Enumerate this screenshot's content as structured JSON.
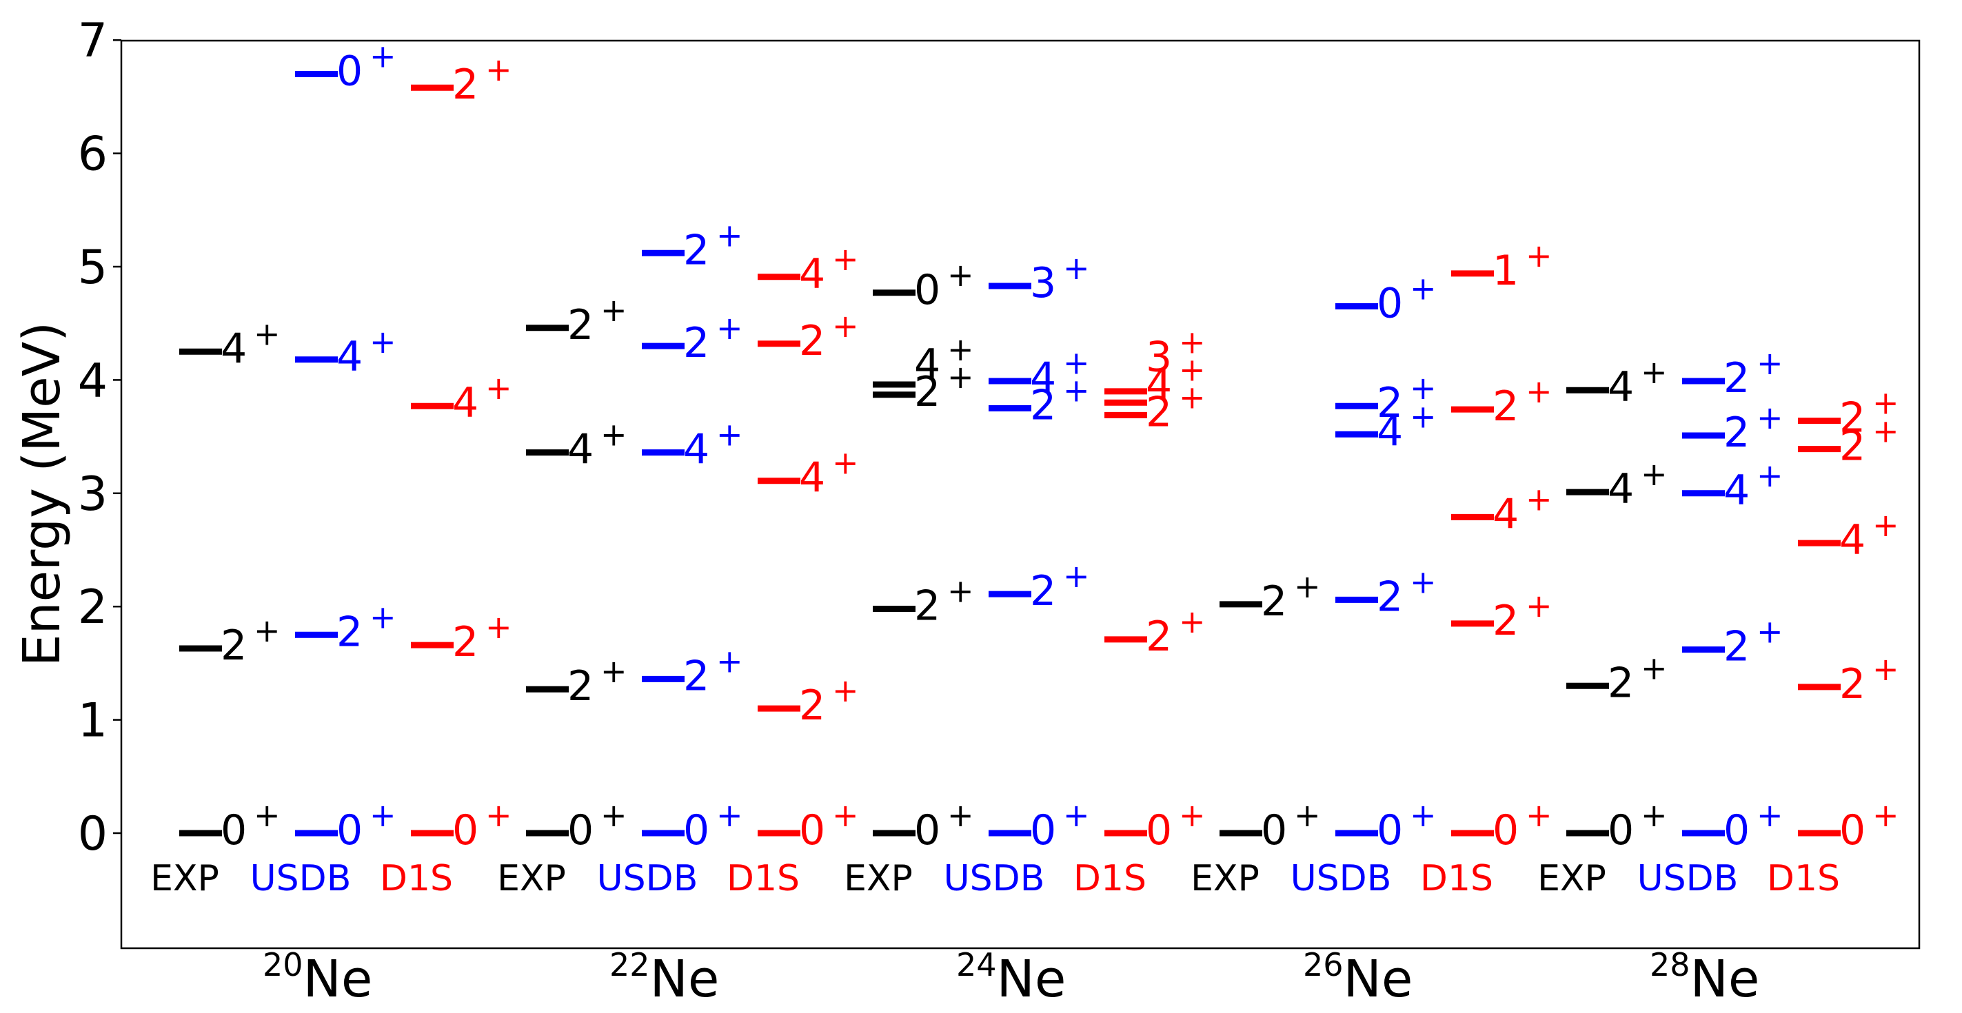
{
  "chart_data": {
    "type": "level-scheme",
    "title": "",
    "ylabel": "Energy (MeV)",
    "xlabel": "",
    "ylim": [
      -1,
      7
    ],
    "yticks": [
      "0",
      "1",
      "2",
      "3",
      "4",
      "5",
      "6",
      "7"
    ],
    "colors": {
      "EXP": "#000000",
      "USDB": "#0000ff",
      "D1S": "#ff0000"
    },
    "method_labels": [
      "EXP",
      "USDB",
      "D1S"
    ],
    "nuclei": [
      {
        "mass": "20",
        "element": "Ne",
        "columns": [
          {
            "method": "EXP",
            "levels": [
              {
                "e": 0.0,
                "label": "0",
                "parity": "+"
              },
              {
                "e": 1.63,
                "label": "2",
                "parity": "+"
              },
              {
                "e": 4.25,
                "label": "4",
                "parity": "+"
              }
            ]
          },
          {
            "method": "USDB",
            "levels": [
              {
                "e": 0.0,
                "label": "0",
                "parity": "+"
              },
              {
                "e": 1.75,
                "label": "2",
                "parity": "+"
              },
              {
                "e": 4.18,
                "label": "4",
                "parity": "+"
              },
              {
                "e": 6.7,
                "label": "0",
                "parity": "+"
              }
            ]
          },
          {
            "method": "D1S",
            "levels": [
              {
                "e": 0.0,
                "label": "0",
                "parity": "+"
              },
              {
                "e": 1.66,
                "label": "2",
                "parity": "+"
              },
              {
                "e": 3.77,
                "label": "4",
                "parity": "+"
              },
              {
                "e": 6.58,
                "label": "2",
                "parity": "+"
              }
            ]
          }
        ]
      },
      {
        "mass": "22",
        "element": "Ne",
        "columns": [
          {
            "method": "EXP",
            "levels": [
              {
                "e": 0.0,
                "label": "0",
                "parity": "+"
              },
              {
                "e": 1.27,
                "label": "2",
                "parity": "+"
              },
              {
                "e": 3.36,
                "label": "4",
                "parity": "+"
              },
              {
                "e": 4.46,
                "label": "2",
                "parity": "+"
              }
            ]
          },
          {
            "method": "USDB",
            "levels": [
              {
                "e": 0.0,
                "label": "0",
                "parity": "+"
              },
              {
                "e": 1.36,
                "label": "2",
                "parity": "+"
              },
              {
                "e": 3.36,
                "label": "4",
                "parity": "+"
              },
              {
                "e": 4.3,
                "label": "2",
                "parity": "+"
              },
              {
                "e": 5.12,
                "label": "2",
                "parity": "+"
              }
            ]
          },
          {
            "method": "D1S",
            "levels": [
              {
                "e": 0.0,
                "label": "0",
                "parity": "+"
              },
              {
                "e": 1.1,
                "label": "2",
                "parity": "+"
              },
              {
                "e": 3.11,
                "label": "4",
                "parity": "+"
              },
              {
                "e": 4.32,
                "label": "2",
                "parity": "+"
              },
              {
                "e": 4.91,
                "label": "4",
                "parity": "+"
              }
            ]
          }
        ]
      },
      {
        "mass": "24",
        "element": "Ne",
        "columns": [
          {
            "method": "EXP",
            "levels": [
              {
                "e": 0.0,
                "label": "0",
                "parity": "+"
              },
              {
                "e": 1.98,
                "label": "2",
                "parity": "+"
              },
              {
                "e": 3.87,
                "label": "2",
                "parity": "+"
              },
              {
                "e": 3.96,
                "label": "4",
                "parity": "+"
              },
              {
                "e": 4.77,
                "label": "0",
                "parity": "+"
              }
            ]
          },
          {
            "method": "USDB",
            "levels": [
              {
                "e": 0.0,
                "label": "0",
                "parity": "+"
              },
              {
                "e": 2.11,
                "label": "2",
                "parity": "+"
              },
              {
                "e": 3.75,
                "label": "2",
                "parity": "+"
              },
              {
                "e": 3.99,
                "label": "4",
                "parity": "+"
              },
              {
                "e": 4.83,
                "label": "3",
                "parity": "+"
              }
            ]
          },
          {
            "method": "D1S",
            "levels": [
              {
                "e": 0.0,
                "label": "0",
                "parity": "+"
              },
              {
                "e": 1.71,
                "label": "2",
                "parity": "+"
              },
              {
                "e": 3.69,
                "label": "2",
                "parity": "+"
              },
              {
                "e": 3.8,
                "label": "4",
                "parity": "+"
              },
              {
                "e": 3.9,
                "label": "3",
                "parity": "+"
              }
            ]
          }
        ]
      },
      {
        "mass": "26",
        "element": "Ne",
        "columns": [
          {
            "method": "EXP",
            "levels": [
              {
                "e": 0.0,
                "label": "0",
                "parity": "+"
              },
              {
                "e": 2.02,
                "label": "2",
                "parity": "+"
              }
            ]
          },
          {
            "method": "USDB",
            "levels": [
              {
                "e": 0.0,
                "label": "0",
                "parity": "+"
              },
              {
                "e": 2.06,
                "label": "2",
                "parity": "+"
              },
              {
                "e": 3.52,
                "label": "4",
                "parity": "+"
              },
              {
                "e": 3.77,
                "label": "2",
                "parity": "+"
              },
              {
                "e": 4.65,
                "label": "0",
                "parity": "+"
              }
            ]
          },
          {
            "method": "D1S",
            "levels": [
              {
                "e": 0.0,
                "label": "0",
                "parity": "+"
              },
              {
                "e": 1.85,
                "label": "2",
                "parity": "+"
              },
              {
                "e": 2.79,
                "label": "4",
                "parity": "+"
              },
              {
                "e": 3.74,
                "label": "2",
                "parity": "+"
              },
              {
                "e": 4.94,
                "label": "1",
                "parity": "+"
              }
            ]
          }
        ]
      },
      {
        "mass": "28",
        "element": "Ne",
        "columns": [
          {
            "method": "EXP",
            "levels": [
              {
                "e": 0.0,
                "label": "0",
                "parity": "+"
              },
              {
                "e": 1.3,
                "label": "2",
                "parity": "+"
              },
              {
                "e": 3.01,
                "label": "4",
                "parity": "+"
              },
              {
                "e": 3.91,
                "label": "4",
                "parity": "+"
              }
            ]
          },
          {
            "method": "USDB",
            "levels": [
              {
                "e": 0.0,
                "label": "0",
                "parity": "+"
              },
              {
                "e": 1.62,
                "label": "2",
                "parity": "+"
              },
              {
                "e": 3.0,
                "label": "4",
                "parity": "+"
              },
              {
                "e": 3.51,
                "label": "2",
                "parity": "+"
              },
              {
                "e": 3.99,
                "label": "2",
                "parity": "+"
              }
            ]
          },
          {
            "method": "D1S",
            "levels": [
              {
                "e": 0.0,
                "label": "0",
                "parity": "+"
              },
              {
                "e": 1.29,
                "label": "2",
                "parity": "+"
              },
              {
                "e": 2.56,
                "label": "4",
                "parity": "+"
              },
              {
                "e": 3.39,
                "label": "2",
                "parity": "+"
              },
              {
                "e": 3.64,
                "label": "2",
                "parity": "+"
              }
            ]
          }
        ]
      }
    ]
  }
}
